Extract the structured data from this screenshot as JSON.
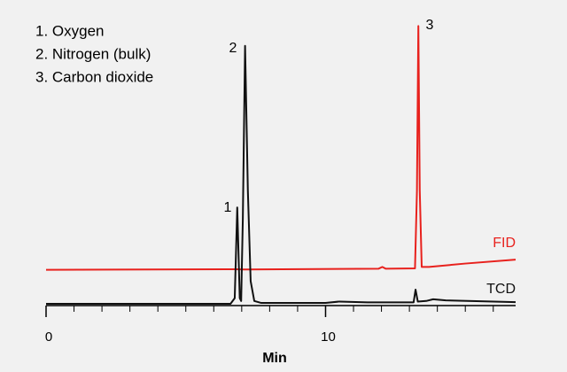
{
  "chart_data": {
    "type": "line",
    "legend_items": [
      "1. Oxygen",
      "2. Nitrogen (bulk)",
      "3. Carbon dioxide"
    ],
    "annotations": [
      "1",
      "2",
      "3"
    ],
    "x_label": "Min",
    "xlim": [
      0,
      16.8
    ],
    "xticks": [
      0,
      10
    ],
    "xminor_ticks": [
      1,
      2,
      3,
      4,
      5,
      6,
      7,
      8,
      9,
      11,
      12,
      13,
      14,
      15,
      16
    ],
    "ylim": [
      0,
      100
    ],
    "series": [
      {
        "name": "FID",
        "color": "#e8211d",
        "x": [
          0,
          6.8,
          7.1,
          11.9,
          12.03,
          12.15,
          13.2,
          13.27,
          13.32,
          13.37,
          13.44,
          13.7,
          15,
          16.8
        ],
        "values": [
          12,
          12.2,
          12.1,
          12.4,
          13,
          12.4,
          12.5,
          40,
          98,
          40,
          13,
          13,
          14.2,
          15.6
        ]
      },
      {
        "name": "TCD",
        "color": "#111111",
        "x": [
          0,
          6.6,
          6.75,
          6.84,
          6.93,
          6.98,
          7.04,
          7.12,
          7.22,
          7.32,
          7.45,
          7.7,
          10,
          10.5,
          11.5,
          13.15,
          13.22,
          13.3,
          13.6,
          13.85,
          14.3,
          16.8
        ],
        "values": [
          0,
          0,
          2,
          34,
          2,
          1,
          30,
          91,
          40,
          8,
          1,
          0.3,
          0.3,
          0.8,
          0.5,
          0.5,
          5,
          0.8,
          1,
          1.6,
          1.2,
          0.6
        ]
      }
    ]
  }
}
